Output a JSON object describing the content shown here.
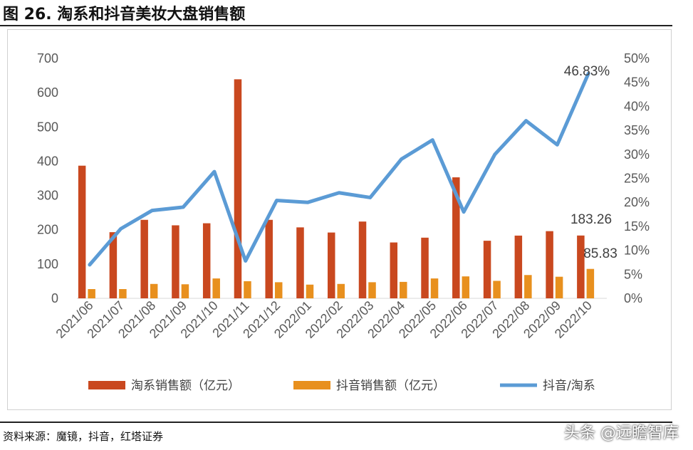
{
  "title": "图 26. 淘系和抖音美妆大盘销售额",
  "source": "资料来源：魔镜，抖音，红塔证券",
  "watermark": "头条 @远瞻智库",
  "chart_data": {
    "type": "bar+line",
    "categories": [
      "2021/06",
      "2021/07",
      "2021/08",
      "2021/09",
      "2021/10",
      "2021/11",
      "2021/12",
      "2022/01",
      "2022/02",
      "2022/03",
      "2022/04",
      "2022/05",
      "2022/06",
      "2022/07",
      "2022/08",
      "2022/09",
      "2022/10"
    ],
    "series": [
      {
        "name": "淘系销售额（亿元）",
        "type": "bar",
        "axis": "left",
        "color": "#C9481F",
        "values": [
          387,
          193,
          229,
          213,
          219,
          639,
          229,
          207,
          192,
          224,
          163,
          177,
          353,
          168,
          183,
          196,
          183.26
        ]
      },
      {
        "name": "抖音销售额（亿元）",
        "type": "bar",
        "axis": "left",
        "color": "#E8901E",
        "values": [
          27,
          27,
          42,
          41,
          58,
          50,
          47,
          40,
          42,
          47,
          48,
          58,
          64,
          51,
          68,
          63,
          85.83
        ]
      },
      {
        "name": "抖音/淘系",
        "type": "line",
        "axis": "right",
        "color": "#5B9BD5",
        "values": [
          7.0,
          14.5,
          18.3,
          19.0,
          26.4,
          7.8,
          20.4,
          20.0,
          22.0,
          21.0,
          29.0,
          33.0,
          18.0,
          30.0,
          37.0,
          32.0,
          46.83
        ]
      }
    ],
    "y_left": {
      "min": 0,
      "max": 700,
      "ticks": [
        "0",
        "100",
        "200",
        "300",
        "400",
        "500",
        "600",
        "700"
      ]
    },
    "y_right": {
      "min": 0,
      "max": 50,
      "ticks": [
        "0%",
        "5%",
        "10%",
        "15%",
        "20%",
        "25%",
        "30%",
        "35%",
        "40%",
        "45%",
        "50%"
      ]
    },
    "data_labels": {
      "bar1_last": "183.26",
      "bar2_last": "85.83",
      "line_last": "46.83%"
    },
    "legend_position": "bottom",
    "grid": false
  }
}
